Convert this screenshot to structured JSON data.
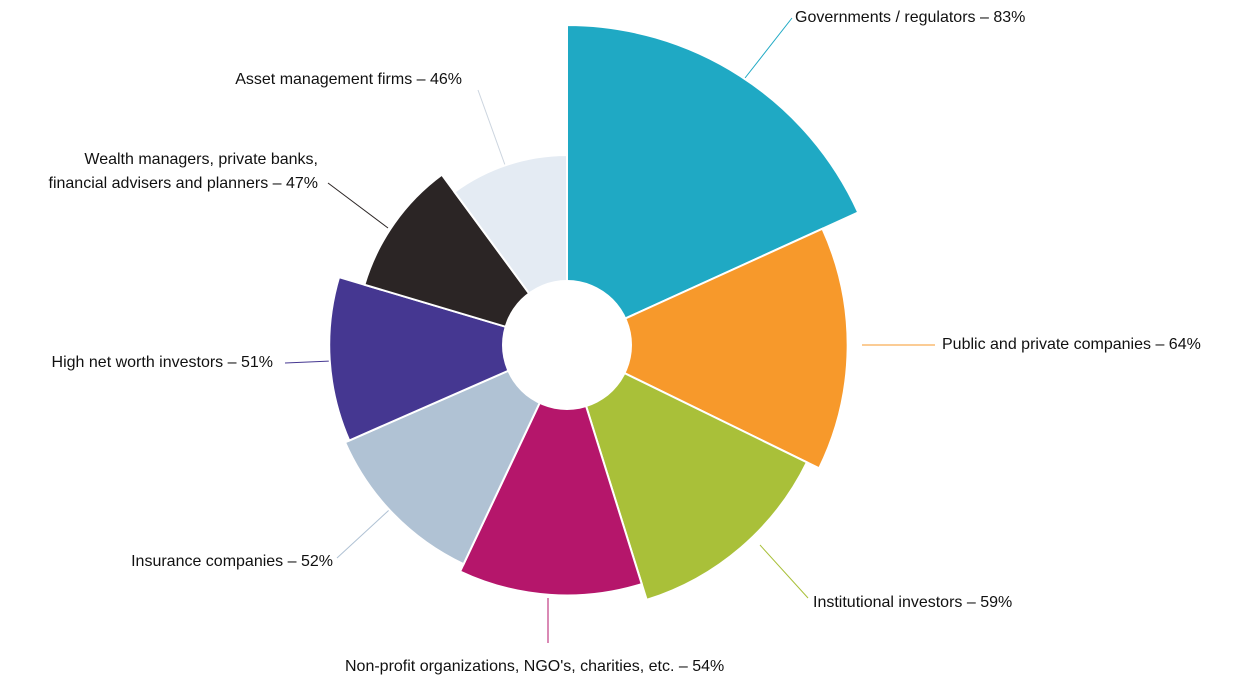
{
  "chart_data": {
    "type": "polar-area",
    "categories": [
      "Governments / regulators – 83%",
      "Public and private companies – 64%",
      "Institutional investors – 59%",
      "Non-profit organizations, NGO's, charities, etc. – 54%",
      "Insurance companies – 52%",
      "High net worth investors – 51%",
      "Wealth managers, private banks,\nfinancial advisers and planners – 47%",
      "Asset management firms – 46%"
    ],
    "values": [
      83,
      64,
      59,
      54,
      52,
      51,
      47,
      46
    ],
    "colors": [
      "#1fa9c4",
      "#f7992b",
      "#a9c039",
      "#b5166b",
      "#b0c2d4",
      "#453791",
      "#2b2525",
      "#e4ebf3"
    ]
  }
}
